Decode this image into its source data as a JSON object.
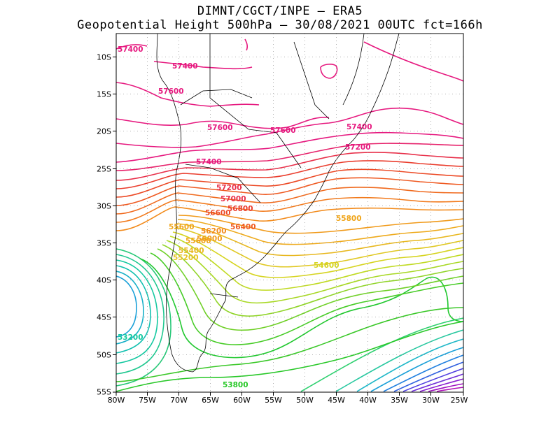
{
  "header": {
    "line1": "DIMNT/CGCT/INPE  –  ERA5",
    "line2": "Geopotential Height 500hPa –  30/08/2021 00UTC fct=166h"
  },
  "map": {
    "lon_range": [
      -80,
      -25
    ],
    "lat_range": [
      -55,
      -5
    ],
    "grid": "dotted",
    "x_ticks": [
      "80W",
      "75W",
      "70W",
      "65W",
      "60W",
      "55W",
      "50W",
      "45W",
      "40W",
      "35W",
      "30W",
      "25W"
    ],
    "y_ticks": [
      "10S",
      "15S",
      "20S",
      "25S",
      "30S",
      "35S",
      "40S",
      "45S",
      "50S",
      "55S"
    ]
  },
  "contour_labels": [
    {
      "text": "57400",
      "color": "#e6197f"
    },
    {
      "text": "57400",
      "color": "#e6197f"
    },
    {
      "text": "57600",
      "color": "#e6197f"
    },
    {
      "text": "57600",
      "color": "#e6197f"
    },
    {
      "text": "57600",
      "color": "#e6197f"
    },
    {
      "text": "57400",
      "color": "#e6197f"
    },
    {
      "text": "57200",
      "color": "#e6197f"
    },
    {
      "text": "57400",
      "color": "#e6197f"
    },
    {
      "text": "57200",
      "color": "#e8304a"
    },
    {
      "text": "57000",
      "color": "#e8304a"
    },
    {
      "text": "56800",
      "color": "#ea3d2d"
    },
    {
      "text": "56600",
      "color": "#ec4a26"
    },
    {
      "text": "56400",
      "color": "#ef5a22"
    },
    {
      "text": "56200",
      "color": "#f28a1a"
    },
    {
      "text": "56000",
      "color": "#f09a1a"
    },
    {
      "text": "55600",
      "color": "#f0a51a"
    },
    {
      "text": "55600",
      "color": "#f0a51a"
    },
    {
      "text": "55400",
      "color": "#e8b820"
    },
    {
      "text": "55200",
      "color": "#e4c424"
    },
    {
      "text": "55800",
      "color": "#f0a51a"
    },
    {
      "text": "54600",
      "color": "#d6d420"
    },
    {
      "text": "53200",
      "color": "#14c8a0"
    },
    {
      "text": "53800",
      "color": "#28c828"
    }
  ]
}
